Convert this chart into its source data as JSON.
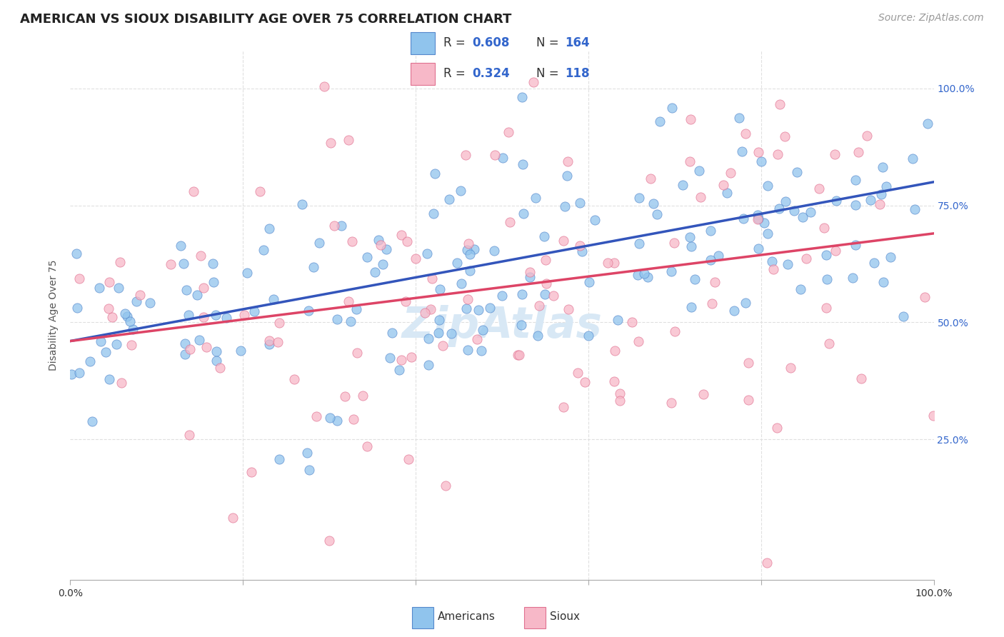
{
  "title": "AMERICAN VS SIOUX DISABILITY AGE OVER 75 CORRELATION CHART",
  "source": "Source: ZipAtlas.com",
  "ylabel": "Disability Age Over 75",
  "blue_color": "#90c4ed",
  "pink_color": "#f7b8c8",
  "blue_edge_color": "#5588cc",
  "pink_edge_color": "#e07090",
  "blue_line_color": "#3355bb",
  "pink_line_color": "#dd4466",
  "blue_text_color": "#3366cc",
  "background_color": "#ffffff",
  "grid_color": "#e0e0e0",
  "watermark_color": "#d8e8f5",
  "title_fontsize": 13,
  "axis_label_fontsize": 10,
  "tick_fontsize": 10,
  "source_fontsize": 10,
  "americans_R": 0.608,
  "americans_N": 164,
  "sioux_R": 0.324,
  "sioux_N": 118,
  "americans_line": [
    0.0,
    1.0,
    0.46,
    0.8
  ],
  "sioux_line": [
    0.0,
    1.0,
    0.46,
    0.69
  ],
  "xlim": [
    0.0,
    1.0
  ],
  "ylim": [
    -0.05,
    1.08
  ],
  "yticks": [
    0.25,
    0.5,
    0.75,
    1.0
  ],
  "ytick_labels": [
    "25.0%",
    "50.0%",
    "75.0%",
    "100.0%"
  ],
  "xtick_positions": [
    0.0,
    0.2,
    0.4,
    0.6,
    0.8,
    1.0
  ],
  "xtick_labels": [
    "0.0%",
    "",
    "",
    "",
    "",
    "100.0%"
  ]
}
